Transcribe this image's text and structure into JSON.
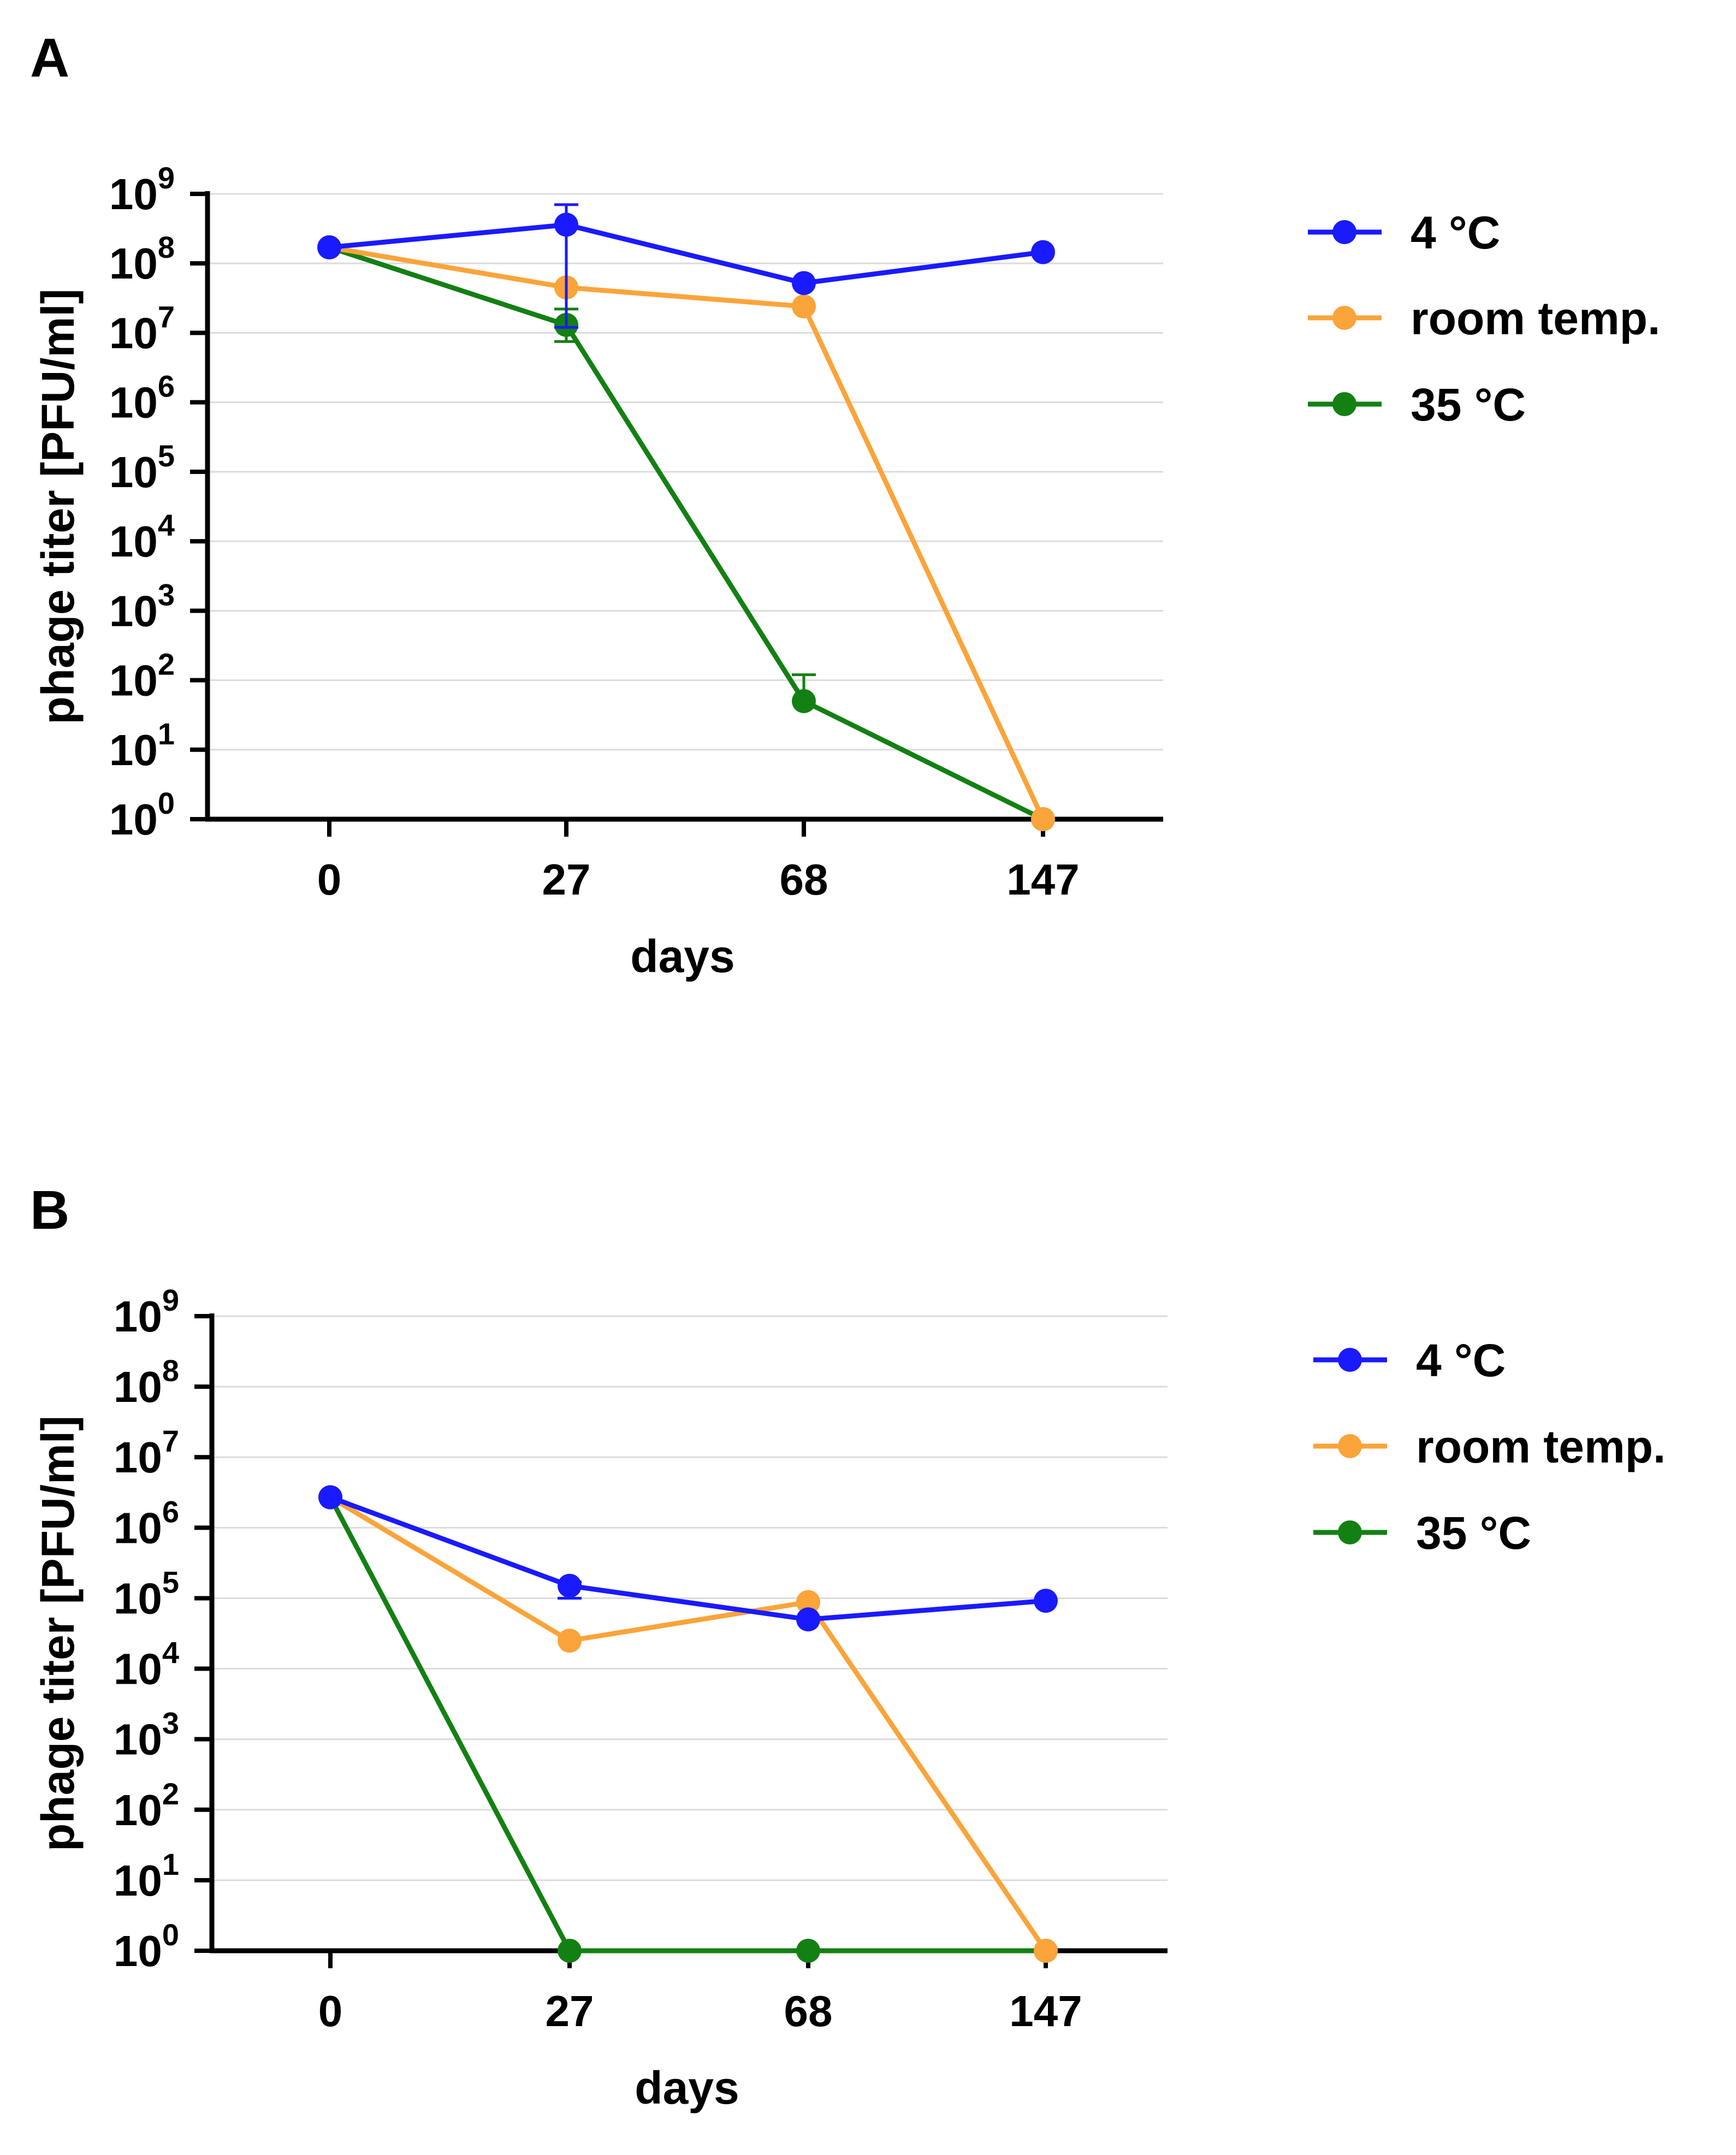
{
  "chart_data": [
    {
      "panel_label": "A",
      "type": "line",
      "title": "",
      "xlabel": "days",
      "ylabel": "phage titer [PFU/ml]",
      "categories": [
        "0",
        "27",
        "68",
        "147"
      ],
      "y_scale": "log10",
      "ylim_exp": [
        0,
        9
      ],
      "y_tick_exponents": [
        0,
        1,
        2,
        3,
        4,
        5,
        6,
        7,
        8,
        9
      ],
      "grid": "horizontal",
      "legend_position": "right",
      "series": [
        {
          "name": "4 °C",
          "color": "#1a1aff",
          "values": [
            170000000,
            360000000,
            52000000,
            145000000
          ],
          "error_upper": [
            null,
            700000000,
            null,
            null
          ],
          "error_lower": [
            null,
            12000000,
            null,
            null
          ]
        },
        {
          "name": "room temp.",
          "color": "#faa43a",
          "values": [
            170000000,
            45000000,
            24000000,
            1
          ],
          "error_upper": [
            null,
            null,
            null,
            null
          ],
          "error_lower": [
            null,
            null,
            null,
            null
          ]
        },
        {
          "name": "35 °C",
          "color": "#138013",
          "values": [
            170000000,
            13000000,
            50,
            1
          ],
          "error_upper": [
            null,
            22000000,
            120,
            null
          ],
          "error_lower": [
            null,
            7500000,
            null,
            null
          ]
        }
      ]
    },
    {
      "panel_label": "B",
      "type": "line",
      "title": "",
      "xlabel": "days",
      "ylabel": "phage titer [PFU/ml]",
      "categories": [
        "0",
        "27",
        "68",
        "147"
      ],
      "y_scale": "log10",
      "ylim_exp": [
        0,
        9
      ],
      "y_tick_exponents": [
        0,
        1,
        2,
        3,
        4,
        5,
        6,
        7,
        8,
        9
      ],
      "grid": "horizontal",
      "legend_position": "right",
      "series": [
        {
          "name": "4 °C",
          "color": "#1a1aff",
          "values": [
            2700000,
            150000,
            50000,
            92000
          ],
          "error_upper": [
            null,
            170000,
            null,
            null
          ],
          "error_lower": [
            null,
            100000,
            null,
            null
          ]
        },
        {
          "name": "room temp.",
          "color": "#faa43a",
          "values": [
            2700000,
            25000,
            88000,
            1
          ],
          "error_upper": [
            null,
            null,
            null,
            null
          ],
          "error_lower": [
            null,
            null,
            null,
            null
          ]
        },
        {
          "name": "35 °C",
          "color": "#138013",
          "values": [
            2700000,
            1,
            1,
            1
          ],
          "error_upper": [
            null,
            null,
            null,
            null
          ],
          "error_lower": [
            null,
            null,
            null,
            null
          ]
        }
      ]
    }
  ]
}
